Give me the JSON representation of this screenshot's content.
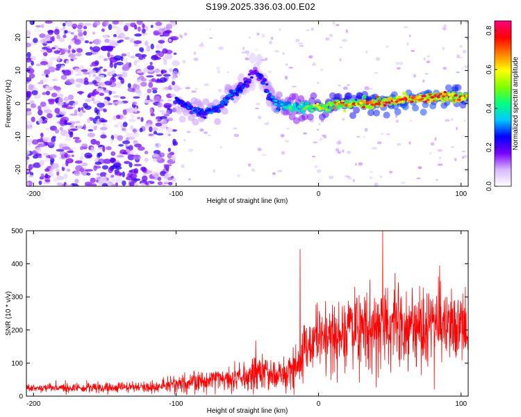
{
  "title": "S199.2025.336.03.00.E02",
  "chart_data": [
    {
      "type": "heatmap",
      "panel": "spectrogram",
      "xlabel": "Height of straight line (km)",
      "ylabel": "Frequency (Hz)",
      "xlim": [
        -205,
        105
      ],
      "ylim": [
        -25,
        25
      ],
      "xticks": [
        -200,
        -100,
        0,
        100
      ],
      "yticks": [
        -20,
        -10,
        0,
        10,
        20
      ],
      "colorbar": {
        "label": "Normalized spectral amplitude",
        "range": [
          0.0,
          0.85
        ],
        "ticks": [
          0.0,
          0.2,
          0.4,
          0.6,
          0.8
        ],
        "colormap": [
          "#ffffff",
          "#d8b8ff",
          "#7a00ff",
          "#0000ff",
          "#00c8ff",
          "#00ff80",
          "#80ff00",
          "#ffff00",
          "#ff8000",
          "#ff0000",
          "#ff0080"
        ]
      },
      "ridge": {
        "description": "signal ridge of frequency vs height",
        "x": [
          -100,
          -90,
          -80,
          -70,
          -60,
          -50,
          -45,
          -40,
          -35,
          -30,
          -20,
          -10,
          0,
          20,
          40,
          60,
          80,
          100
        ],
        "freq": [
          1,
          -1,
          -3,
          -1,
          3,
          6,
          10,
          8,
          3,
          0,
          -1,
          -1,
          -1,
          0,
          0,
          1,
          2,
          2
        ],
        "amplitude": [
          0.25,
          0.3,
          0.3,
          0.3,
          0.3,
          0.25,
          0.2,
          0.25,
          0.3,
          0.35,
          0.45,
          0.5,
          0.6,
          0.7,
          0.75,
          0.8,
          0.8,
          0.75
        ]
      },
      "noise_region": {
        "x_from": -205,
        "x_to": -100,
        "amplitude": 0.15
      }
    },
    {
      "type": "line",
      "panel": "snr",
      "xlabel": "Height of straight line (km)",
      "ylabel": "SNR (10 * v/v)",
      "xlim": [
        -205,
        105
      ],
      "ylim": [
        0,
        500
      ],
      "xticks": [
        -200,
        -100,
        0,
        100
      ],
      "yticks": [
        0,
        100,
        200,
        300,
        400,
        500
      ],
      "color": "#ff0000",
      "series": [
        {
          "name": "SNR",
          "envelope_x": [
            -205,
            -150,
            -110,
            -90,
            -70,
            -50,
            -40,
            -30,
            -20,
            -13,
            -10,
            0,
            20,
            40,
            60,
            80,
            100,
            105
          ],
          "envelope_mean": [
            25,
            25,
            28,
            40,
            55,
            60,
            70,
            60,
            80,
            95,
            150,
            170,
            200,
            210,
            210,
            220,
            200,
            180
          ],
          "envelope_spread": [
            12,
            14,
            16,
            30,
            35,
            40,
            50,
            45,
            55,
            60,
            80,
            90,
            100,
            110,
            100,
            110,
            100,
            90
          ],
          "spikes": [
            {
              "x": -13,
              "y": 445
            },
            {
              "x": 45,
              "y": 500
            },
            {
              "x": 85,
              "y": 395
            },
            {
              "x": -44,
              "y": 168
            },
            {
              "x": 103,
              "y": 330
            }
          ]
        }
      ]
    }
  ]
}
